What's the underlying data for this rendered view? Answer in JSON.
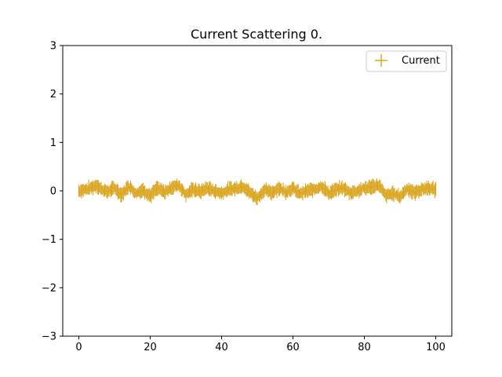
{
  "chart_data": {
    "type": "line",
    "title": "Current Scattering 0.",
    "xlabel": "",
    "ylabel": "",
    "xlim": [
      -4.5,
      104.5
    ],
    "ylim": [
      -3,
      3
    ],
    "x_ticks": [
      0,
      20,
      40,
      60,
      80,
      100
    ],
    "y_ticks": [
      -3,
      -2,
      -1,
      0,
      1,
      2,
      3
    ],
    "x_tick_labels": [
      "0",
      "20",
      "40",
      "60",
      "80",
      "100"
    ],
    "y_tick_labels": [
      "−3",
      "−2",
      "−1",
      "0",
      "1",
      "2",
      "3"
    ],
    "grid": false,
    "legend_position": "top-right",
    "series": [
      {
        "name": "Current",
        "color": "#daa520",
        "style": "error-bars",
        "x_range": [
          0,
          100
        ],
        "x": [
          0,
          2,
          4,
          5,
          6,
          8,
          10,
          12,
          14,
          16,
          18,
          20,
          22,
          24,
          26,
          28,
          30,
          32,
          34,
          36,
          38,
          40,
          42,
          44,
          46,
          48,
          50,
          52,
          54,
          56,
          58,
          60,
          62,
          64,
          66,
          68,
          70,
          72,
          74,
          76,
          78,
          80,
          82,
          84,
          86,
          88,
          90,
          92,
          94,
          96,
          98,
          100
        ],
        "y": [
          0.0,
          0.03,
          0.08,
          0.12,
          0.05,
          -0.02,
          0.06,
          -0.08,
          0.1,
          -0.05,
          0.02,
          -0.1,
          0.05,
          -0.03,
          0.07,
          0.12,
          -0.08,
          0.04,
          -0.02,
          0.06,
          0.0,
          -0.05,
          0.03,
          0.05,
          0.1,
          -0.04,
          -0.15,
          0.02,
          -0.04,
          0.06,
          -0.02,
          0.05,
          -0.06,
          0.0,
          0.03,
          0.1,
          -0.05,
          0.02,
          0.06,
          -0.04,
          0.0,
          0.05,
          0.08,
          0.12,
          -0.1,
          -0.05,
          -0.12,
          0.05,
          -0.04,
          0.03,
          0.06,
          0.02
        ],
        "y_spread": 0.12
      }
    ]
  }
}
